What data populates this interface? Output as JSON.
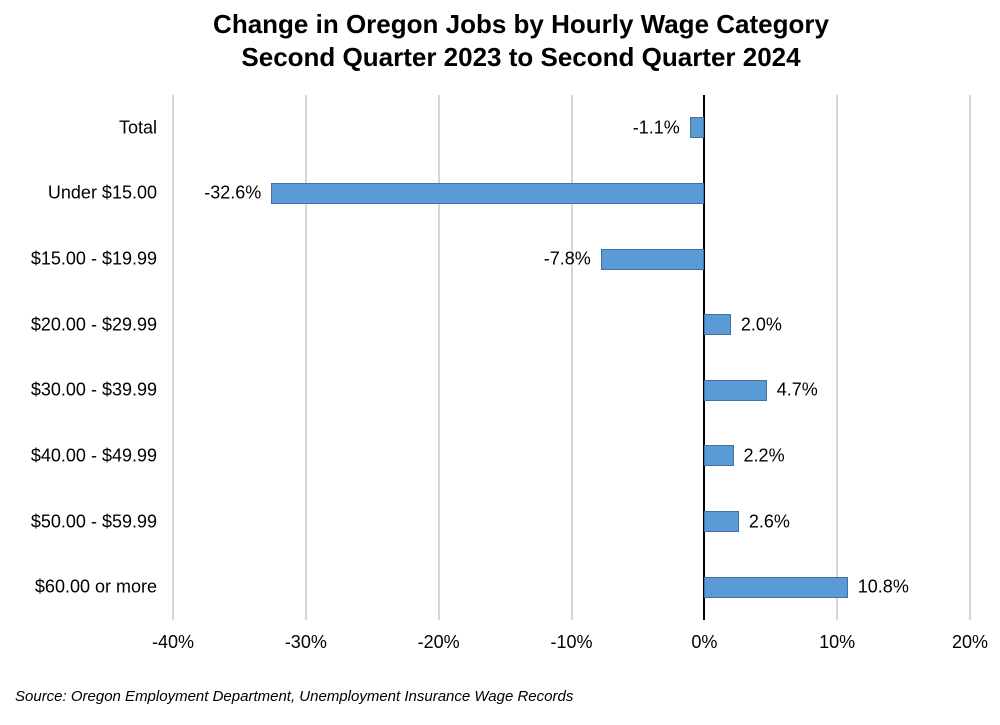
{
  "title": {
    "line1": "Change in Oregon Jobs by Hourly Wage Category",
    "line2": "Second Quarter 2023 to Second Quarter 2024"
  },
  "source": "Source: Oregon Employment Department, Unemployment Insurance Wage Records",
  "chart_data": {
    "type": "bar",
    "orientation": "horizontal",
    "title": "Change in Oregon Jobs by Hourly Wage Category Second Quarter 2023 to Second Quarter 2024",
    "title_lines": [
      "Change in Oregon Jobs by Hourly Wage Category",
      "Second Quarter 2023 to Second Quarter 2024"
    ],
    "categories": [
      "Total",
      "Under $15.00",
      "$15.00 - $19.99",
      "$20.00 - $29.99",
      "$30.00 - $39.99",
      "$40.00 - $49.99",
      "$50.00 - $59.99",
      "$60.00 or more"
    ],
    "values": [
      -1.1,
      -32.6,
      -7.8,
      2.0,
      4.7,
      2.2,
      2.6,
      10.8
    ],
    "data_labels": [
      "-1.1%",
      "-32.6%",
      "-7.8%",
      "2.0%",
      "4.7%",
      "2.2%",
      "2.6%",
      "10.8%"
    ],
    "xlabel": "",
    "ylabel": "",
    "xlim": [
      -40,
      20
    ],
    "xticks": [
      -40,
      -30,
      -20,
      -10,
      0,
      10,
      20
    ],
    "xtick_labels": [
      "-40%",
      "-30%",
      "-20%",
      "-10%",
      "0%",
      "10%",
      "20%"
    ],
    "grid": "vertical-gridlines-on",
    "legend": "none",
    "colors": {
      "bar_fill": "#5B9BD5",
      "bar_border": "#41719C",
      "gridline": "#D6D6D6",
      "zero_line": "#000000",
      "text": "#000000",
      "background": "#FFFFFF"
    }
  }
}
